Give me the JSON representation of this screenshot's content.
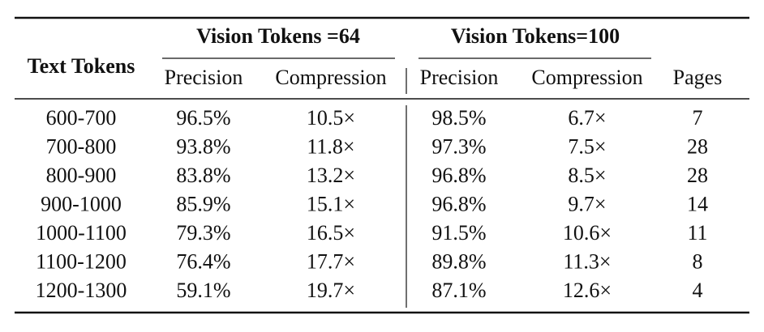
{
  "table": {
    "group_headers": [
      "Vision Tokens =64",
      "Vision Tokens=100"
    ],
    "header": [
      "Text Tokens",
      "Precision",
      "Compression",
      "Precision",
      "Compression",
      "Pages"
    ],
    "rows": [
      [
        "600-700",
        "96.5%",
        "10.5×",
        "98.5%",
        "6.7×",
        "7"
      ],
      [
        "700-800",
        "93.8%",
        "11.8×",
        "97.3%",
        "7.5×",
        "28"
      ],
      [
        "800-900",
        "83.8%",
        "13.2×",
        "96.8%",
        "8.5×",
        "28"
      ],
      [
        "900-1000",
        "85.9%",
        "15.1×",
        "96.8%",
        "9.7×",
        "14"
      ],
      [
        "1000-1100",
        "79.3%",
        "16.5×",
        "91.5%",
        "10.6×",
        "11"
      ],
      [
        "1100-1200",
        "76.4%",
        "17.7×",
        "89.8%",
        "11.3×",
        "8"
      ],
      [
        "1200-1300",
        "59.1%",
        "19.7×",
        "87.1%",
        "12.6×",
        "4"
      ]
    ]
  }
}
